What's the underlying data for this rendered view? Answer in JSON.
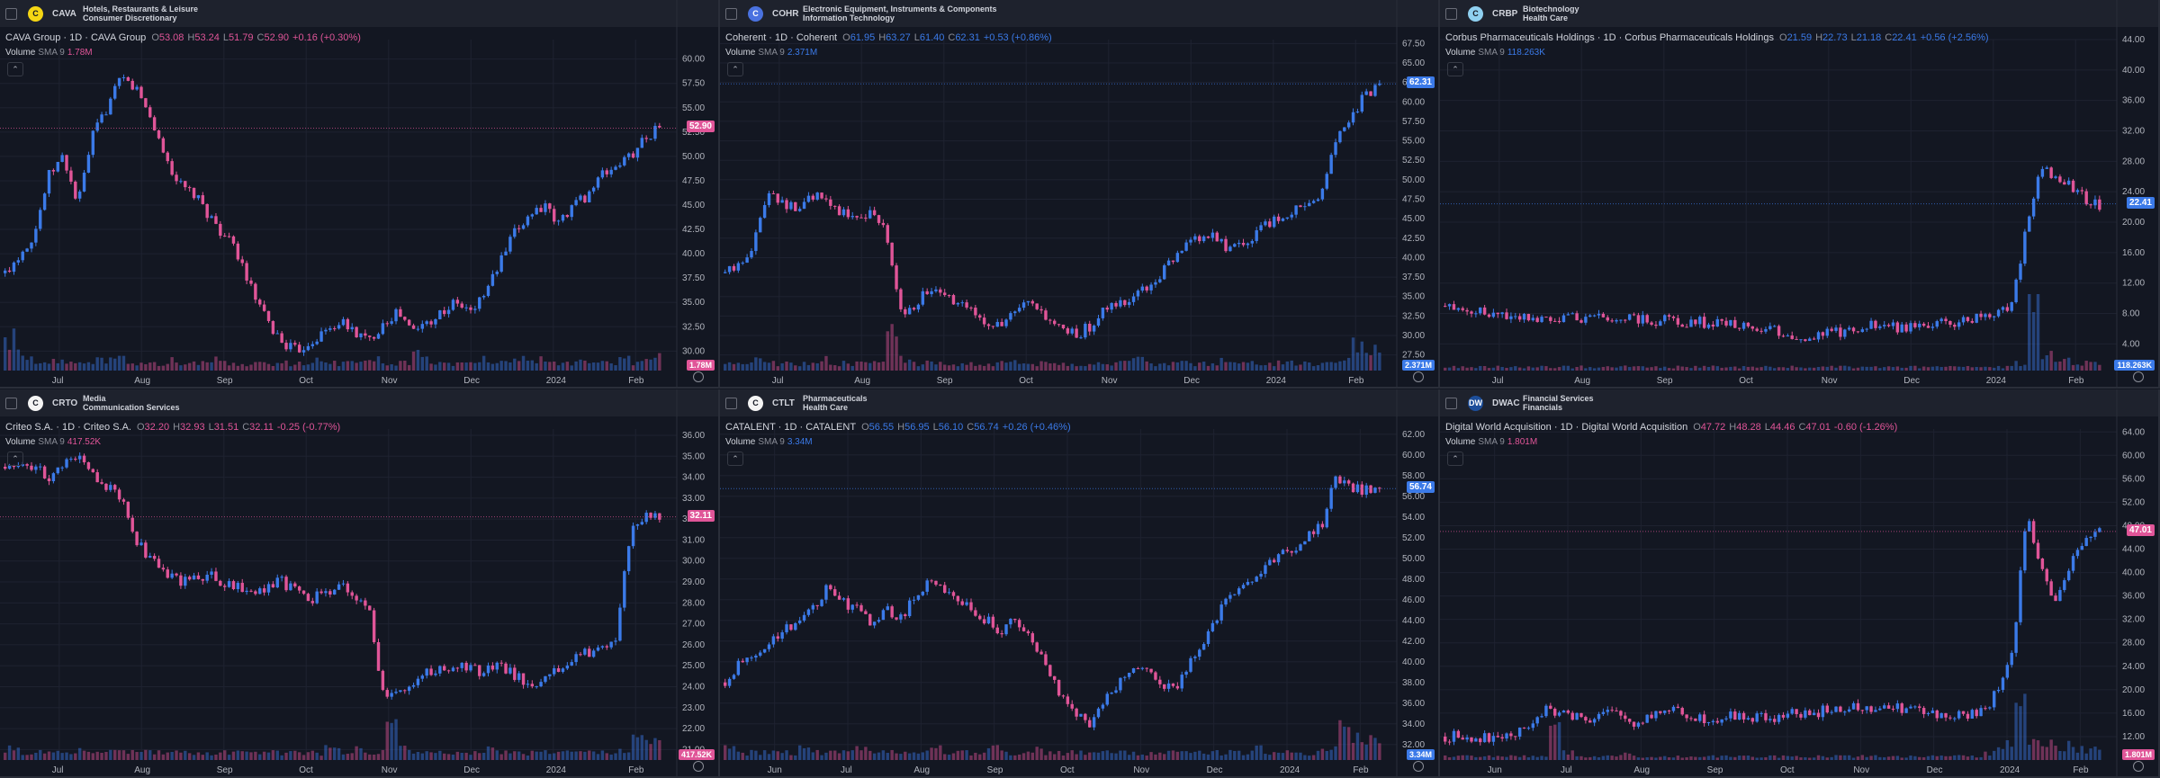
{
  "colors": {
    "up": "#3b7ae8",
    "down": "#e05598",
    "bg": "#131722",
    "grid": "#1e2230"
  },
  "panels": [
    {
      "id": "cava",
      "ticker": "CAVA",
      "logo_text": "C",
      "logo_color": "#f5d614",
      "sector": "Hotels, Restaurants & Leisure",
      "industry": "Consumer Discretionary",
      "title": "CAVA Group · 1D · CAVA Group",
      "ohlc": {
        "o_label": "O",
        "o": "53.08",
        "h_label": "H",
        "h": "53.24",
        "l_label": "L",
        "l": "51.79",
        "c_label": "C",
        "c": "52.90",
        "chg": "+0.16 (+0.30%)"
      },
      "chg_color": "#e05598",
      "volume_label": "Volume",
      "sma_label": "SMA 9",
      "volume_value": "1.78M",
      "volume_color": "#e05598",
      "price_tag": "52.90",
      "price_tag_color": "#e05598",
      "vol_tag": "1.78M",
      "vol_tag_color": "#e05598",
      "y_ticks": [
        "60.00",
        "57.50",
        "55.00",
        "52.50",
        "50.00",
        "47.50",
        "45.00",
        "42.50",
        "40.00",
        "37.50",
        "35.00",
        "32.50",
        "30.00"
      ],
      "y_range": [
        28.0,
        62.0
      ],
      "x_ticks": [
        "Jul",
        "Aug",
        "Sep",
        "Oct",
        "Nov",
        "Dec",
        "2024",
        "Feb"
      ],
      "price_path": [
        38,
        40,
        42,
        48,
        50,
        45,
        52,
        55,
        58,
        57,
        54,
        50,
        47,
        46,
        44,
        42,
        40,
        36,
        33,
        31,
        30,
        31,
        32,
        33,
        32,
        31,
        33,
        34,
        32,
        33,
        34,
        35,
        34,
        36,
        39,
        42,
        44,
        45,
        43,
        45,
        46,
        48,
        49,
        50,
        52,
        53
      ],
      "vol_profile": [
        9,
        3,
        2,
        3,
        2,
        2,
        3,
        4,
        3,
        2,
        2,
        3,
        2,
        2,
        3,
        2,
        2,
        3,
        2,
        2,
        2,
        3,
        2,
        2,
        2,
        3,
        2,
        2,
        6,
        2,
        2,
        2,
        3,
        2,
        2,
        3,
        3,
        2,
        2,
        3,
        2,
        2,
        3,
        2,
        3,
        4
      ]
    },
    {
      "id": "cohr",
      "ticker": "COHR",
      "logo_text": "C",
      "logo_color": "#4a72e0",
      "sector": "Electronic Equipment, Instruments & Components",
      "industry": "Information Technology",
      "title": "Coherent · 1D · Coherent",
      "ohlc": {
        "o_label": "O",
        "o": "61.95",
        "h_label": "H",
        "h": "63.27",
        "l_label": "L",
        "l": "61.40",
        "c_label": "C",
        "c": "62.31",
        "chg": "+0.53 (+0.86%)"
      },
      "chg_color": "#3b7ae8",
      "volume_label": "Volume",
      "sma_label": "SMA 9",
      "volume_value": "2.371M",
      "volume_color": "#3b7ae8",
      "price_tag": "62.31",
      "price_tag_color": "#3b7ae8",
      "vol_tag": "2.371M",
      "vol_tag_color": "#3b7ae8",
      "y_ticks": [
        "67.50",
        "65.00",
        "62.50",
        "60.00",
        "57.50",
        "55.00",
        "52.50",
        "50.00",
        "47.50",
        "45.00",
        "42.50",
        "40.00",
        "37.50",
        "35.00",
        "32.50",
        "30.00",
        "27.50"
      ],
      "y_range": [
        25.5,
        68.0
      ],
      "x_ticks": [
        "Jul",
        "Aug",
        "Sep",
        "Oct",
        "Nov",
        "Dec",
        "2024",
        "Feb"
      ],
      "price_path": [
        38,
        39,
        42,
        49,
        47,
        46,
        48,
        47,
        46,
        45,
        46,
        44,
        33,
        34,
        36,
        35,
        34,
        33,
        32,
        31,
        33,
        34,
        32,
        31,
        30,
        31,
        33,
        34,
        35,
        36,
        38,
        40,
        42,
        43,
        42,
        41,
        42,
        44,
        45,
        46,
        47,
        48,
        55,
        58,
        61,
        62
      ],
      "vol_profile": [
        2,
        2,
        3,
        2,
        2,
        2,
        3,
        2,
        2,
        2,
        2,
        12,
        3,
        2,
        2,
        2,
        2,
        2,
        2,
        3,
        2,
        2,
        2,
        2,
        2,
        2,
        2,
        2,
        3,
        2,
        2,
        2,
        2,
        2,
        3,
        2,
        2,
        2,
        2,
        2,
        2,
        2,
        4,
        8,
        6,
        5
      ]
    },
    {
      "id": "crbp",
      "ticker": "CRBP",
      "logo_text": "C",
      "logo_color": "#8fd0f0",
      "sector": "Biotechnology",
      "industry": "Health Care",
      "title": "Corbus Pharmaceuticals Holdings · 1D · Corbus Pharmaceuticals Holdings",
      "ohlc": {
        "o_label": "O",
        "o": "21.59",
        "h_label": "H",
        "h": "22.73",
        "l_label": "L",
        "l": "21.18",
        "c_label": "C",
        "c": "22.41",
        "chg": "+0.56 (+2.56%)"
      },
      "chg_color": "#3b7ae8",
      "volume_label": "Volume",
      "sma_label": "SMA 9",
      "volume_value": "118.263K",
      "volume_color": "#3b7ae8",
      "price_tag": "22.41",
      "price_tag_color": "#3b7ae8",
      "vol_tag": "118.263K",
      "vol_tag_color": "#3b7ae8",
      "y_ticks": [
        "44.00",
        "40.00",
        "36.00",
        "32.00",
        "28.00",
        "24.00",
        "20.00",
        "16.00",
        "12.00",
        "8.00",
        "4.00"
      ],
      "y_range": [
        0.5,
        44.0
      ],
      "x_ticks": [
        "Jul",
        "Aug",
        "Sep",
        "Oct",
        "Nov",
        "Dec",
        "2024",
        "Feb"
      ],
      "price_path": [
        9,
        8.8,
        8.5,
        8.2,
        8,
        7.8,
        7.6,
        7.5,
        7.4,
        7.3,
        7.4,
        7.5,
        7.3,
        7.2,
        7.1,
        7.2,
        7.0,
        6.9,
        6.8,
        6.6,
        6.4,
        6.2,
        6.0,
        5.5,
        5.0,
        4.8,
        5.2,
        5.5,
        6,
        6.5,
        6.3,
        6.2,
        6.4,
        6.6,
        6.8,
        7.0,
        7.2,
        7.4,
        8,
        9,
        20,
        27,
        26,
        25,
        23,
        22.4
      ],
      "vol_profile": [
        1,
        1,
        1,
        1,
        1,
        1,
        1,
        1,
        1,
        1,
        1,
        1,
        1,
        1,
        1,
        1,
        1,
        1,
        1,
        1,
        1,
        1,
        1,
        1,
        1,
        1,
        1,
        1,
        1,
        1,
        1,
        1,
        1,
        1,
        1,
        1,
        1,
        1,
        1,
        2,
        18,
        4,
        3,
        2,
        2,
        2
      ]
    },
    {
      "id": "crto",
      "ticker": "CRTO",
      "logo_text": "C",
      "logo_color": "#f4f4f4",
      "sector": "Media",
      "industry": "Communication Services",
      "title": "Criteo S.A. · 1D · Criteo S.A.",
      "ohlc": {
        "o_label": "O",
        "o": "32.20",
        "h_label": "H",
        "h": "32.93",
        "l_label": "L",
        "l": "31.51",
        "c_label": "C",
        "c": "32.11",
        "chg": "-0.25 (-0.77%)"
      },
      "chg_color": "#e05598",
      "volume_label": "Volume",
      "sma_label": "SMA 9",
      "volume_value": "417.52K",
      "volume_color": "#e05598",
      "price_tag": "32.11",
      "price_tag_color": "#e05598",
      "vol_tag": "417.52K",
      "vol_tag_color": "#e05598",
      "y_ticks": [
        "36.00",
        "35.00",
        "34.00",
        "33.00",
        "32.00",
        "31.00",
        "30.00",
        "29.00",
        "28.00",
        "27.00",
        "26.00",
        "25.00",
        "24.00",
        "23.00",
        "22.00",
        "21.00"
      ],
      "y_range": [
        20.5,
        36.3
      ],
      "x_ticks": [
        "Jul",
        "Aug",
        "Sep",
        "Oct",
        "Nov",
        "Dec",
        "2024",
        "Feb"
      ],
      "price_path": [
        34.5,
        34.8,
        34.5,
        34.0,
        34.5,
        35,
        34.2,
        33.5,
        33,
        31,
        30,
        29.5,
        29,
        29.2,
        29.4,
        29,
        28.8,
        28.5,
        28.8,
        29,
        28.5,
        28.2,
        28.6,
        28.8,
        28.3,
        27.8,
        23.5,
        23.8,
        24.3,
        24.6,
        24.8,
        25,
        24.9,
        24.7,
        25,
        24.6,
        24.2,
        24.3,
        24.8,
        25.2,
        25.6,
        26,
        26.2,
        31.5,
        32.3,
        32.1
      ],
      "vol_profile": [
        3,
        2,
        2,
        2,
        2,
        3,
        2,
        2,
        2,
        3,
        2,
        3,
        2,
        2,
        2,
        2,
        2,
        2,
        2,
        2,
        2,
        2,
        3,
        2,
        3,
        2,
        9,
        3,
        2,
        2,
        2,
        2,
        2,
        3,
        2,
        2,
        2,
        2,
        2,
        2,
        2,
        2,
        3,
        6,
        5,
        4
      ]
    },
    {
      "id": "ctlt",
      "ticker": "CTLT",
      "logo_text": "C",
      "logo_color": "#f4f4f4",
      "sector": "Pharmaceuticals",
      "industry": "Health Care",
      "title": "CATALENT · 1D · CATALENT",
      "ohlc": {
        "o_label": "O",
        "o": "56.55",
        "h_label": "H",
        "h": "56.95",
        "l_label": "L",
        "l": "56.10",
        "c_label": "C",
        "c": "56.74",
        "chg": "+0.26 (+0.46%)"
      },
      "chg_color": "#3b7ae8",
      "volume_label": "Volume",
      "sma_label": "SMA 9",
      "volume_value": "3.34M",
      "volume_color": "#3b7ae8",
      "price_tag": "56.74",
      "price_tag_color": "#3b7ae8",
      "vol_tag": "3.34M",
      "vol_tag_color": "#3b7ae8",
      "y_ticks": [
        "62.00",
        "60.00",
        "58.00",
        "56.00",
        "54.00",
        "52.00",
        "50.00",
        "48.00",
        "46.00",
        "44.00",
        "42.00",
        "40.00",
        "38.00",
        "36.00",
        "34.00",
        "32.00"
      ],
      "y_range": [
        30.5,
        62.5
      ],
      "x_ticks": [
        "Jun",
        "Jul",
        "Aug",
        "Sep",
        "Oct",
        "Nov",
        "Dec",
        "2024",
        "Feb"
      ],
      "price_path": [
        38,
        40,
        41,
        42,
        43,
        44,
        45,
        47,
        46,
        45,
        44,
        45,
        44,
        46,
        48,
        47,
        46,
        45,
        44,
        43,
        44,
        42,
        40,
        37,
        35,
        34,
        36,
        38,
        39,
        39,
        38,
        37,
        40,
        42,
        45,
        47,
        48,
        49,
        50,
        51,
        52,
        53,
        58,
        57,
        56.5,
        56.7
      ],
      "vol_profile": [
        3,
        2,
        2,
        2,
        2,
        3,
        2,
        2,
        2,
        3,
        2,
        2,
        2,
        2,
        3,
        2,
        2,
        2,
        3,
        2,
        2,
        3,
        2,
        2,
        2,
        3,
        2,
        2,
        2,
        2,
        2,
        2,
        2,
        2,
        2,
        2,
        3,
        2,
        2,
        2,
        2,
        3,
        9,
        6,
        5,
        4
      ]
    },
    {
      "id": "dwac",
      "ticker": "DWAC",
      "logo_text": "DW",
      "logo_color": "#1d4e9a",
      "sector": "Financial Services",
      "industry": "Financials",
      "title": "Digital World Acquisition · 1D · Digital World Acquisition",
      "ohlc": {
        "o_label": "O",
        "o": "47.72",
        "h_label": "H",
        "h": "48.28",
        "l_label": "L",
        "l": "44.46",
        "c_label": "C",
        "c": "47.01",
        "chg": "-0.60 (-1.26%)"
      },
      "chg_color": "#e05598",
      "volume_label": "Volume",
      "sma_label": "SMA 9",
      "volume_value": "1.801M",
      "volume_color": "#e05598",
      "price_tag": "47.01",
      "price_tag_color": "#e05598",
      "vol_tag": "1.801M",
      "vol_tag_color": "#e05598",
      "y_ticks": [
        "64.00",
        "60.00",
        "56.00",
        "52.00",
        "48.00",
        "44.00",
        "40.00",
        "36.00",
        "32.00",
        "28.00",
        "24.00",
        "20.00",
        "16.00",
        "12.00"
      ],
      "y_range": [
        8.0,
        64.5
      ],
      "x_ticks": [
        "Jun",
        "Jul",
        "Aug",
        "Sep",
        "Oct",
        "Nov",
        "Dec",
        "2024",
        "Feb"
      ],
      "price_path": [
        12,
        12,
        11.8,
        11.6,
        12,
        12.2,
        15,
        17,
        16,
        15.5,
        15,
        16,
        15.5,
        14,
        15.5,
        16.5,
        16,
        15.5,
        15,
        15.2,
        15.4,
        15,
        15.2,
        15.5,
        16,
        15.8,
        16.5,
        17,
        17.5,
        17,
        16.5,
        17,
        16.5,
        16,
        15.5,
        16,
        15.5,
        16,
        20,
        26,
        50,
        40,
        35,
        42,
        46,
        47
      ],
      "vol_profile": [
        1,
        1,
        1,
        1,
        1,
        1,
        1,
        8,
        2,
        1,
        1,
        1,
        2,
        1,
        1,
        1,
        1,
        1,
        1,
        1,
        1,
        1,
        1,
        1,
        1,
        1,
        1,
        1,
        1,
        1,
        1,
        1,
        1,
        1,
        1,
        1,
        1,
        2,
        4,
        18,
        6,
        5,
        4,
        3,
        3,
        3
      ]
    }
  ]
}
